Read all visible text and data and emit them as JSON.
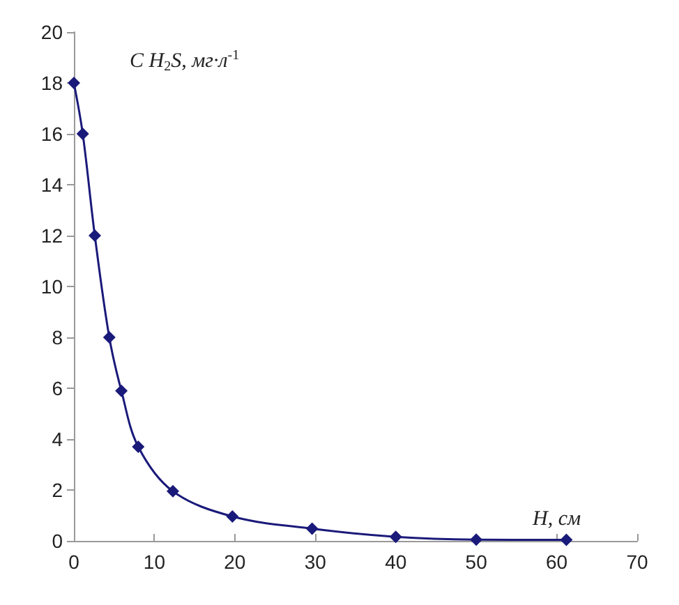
{
  "chart_data": {
    "type": "line",
    "xlabel": "H, см",
    "ylabel": "C H$_{2}$S, мг·л$^{-1}$",
    "x": [
      0,
      1.1,
      2.6,
      4.4,
      5.9,
      8,
      12.3,
      19.7,
      29.6,
      40,
      50,
      61.2
    ],
    "series": [
      {
        "color": "#1a1a7a",
        "values": [
          18,
          16,
          12,
          8,
          5.9,
          3.7,
          1.95,
          0.96,
          0.48,
          0.16,
          0.05,
          0.04
        ]
      }
    ],
    "xlim": [
      0,
      70
    ],
    "xticks": [
      0,
      10,
      20,
      30,
      40,
      50,
      60,
      70
    ],
    "ylim": [
      0,
      20
    ],
    "yticks": [
      0,
      2,
      4,
      6,
      8,
      10,
      12,
      14,
      16,
      18,
      20
    ],
    "marker": "diamond",
    "line_style": "solid",
    "grid": false
  }
}
